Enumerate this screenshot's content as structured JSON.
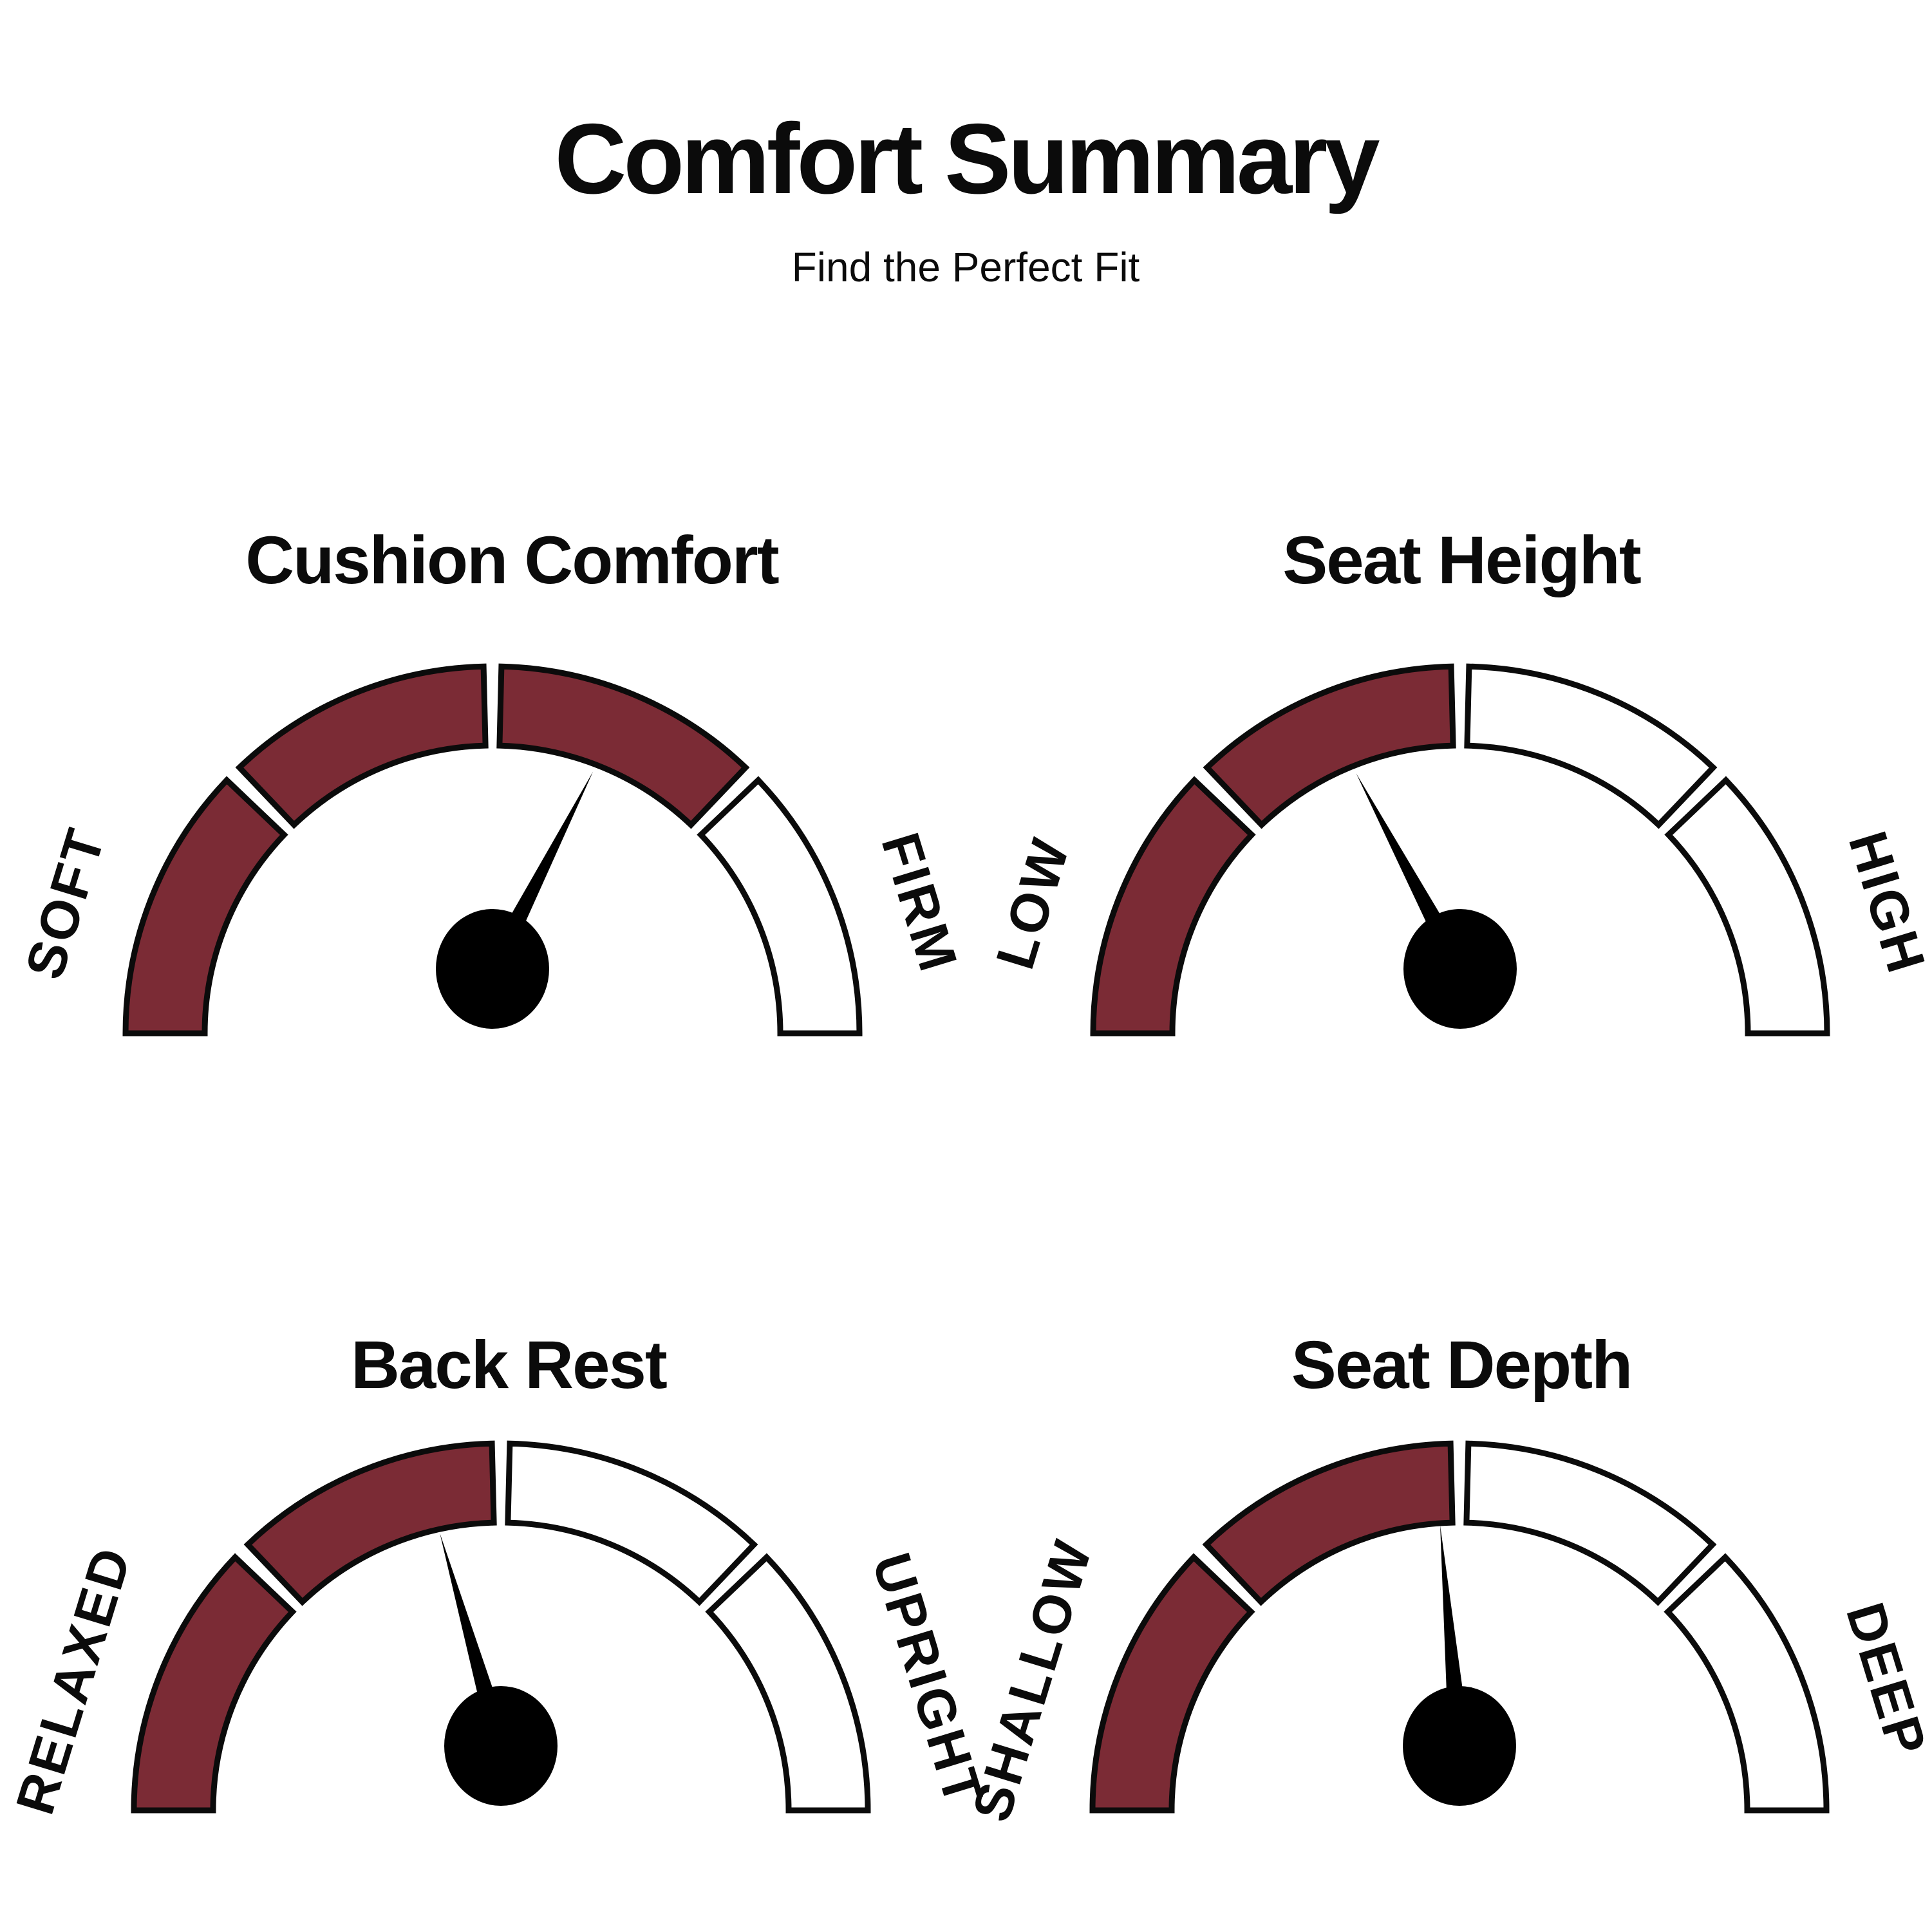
{
  "header": {
    "title": "Comfort Summary",
    "subtitle": "Find the Perfect Fit"
  },
  "colors": {
    "filled": "#7B2B35",
    "unfilled": "#FFFFFF",
    "outline": "#0B0B0B",
    "needle": "#000000",
    "text": "#0B0B0B",
    "background": "#FFFFFF"
  },
  "chart_data": [
    {
      "type": "gauge",
      "title": "Cushion Comfort",
      "left_label": "SOFT",
      "right_label": "FIRM",
      "segments_total": 4,
      "segments_filled": 3,
      "segments": [
        "filled",
        "filled",
        "filled",
        "unfilled"
      ],
      "needle_angle_from_vertical_deg": 27,
      "reading_fraction": 0.65
    },
    {
      "type": "gauge",
      "title": "Seat Height",
      "left_label": "LOW",
      "right_label": "HIGH",
      "segments_total": 4,
      "segments_filled": 2,
      "segments": [
        "filled",
        "filled",
        "unfilled",
        "unfilled"
      ],
      "needle_angle_from_vertical_deg": -28,
      "reading_fraction": 0.34
    },
    {
      "type": "gauge",
      "title": "Back Rest",
      "left_label": "RELAXED",
      "right_label": "UPRIGHT",
      "segments_total": 4,
      "segments_filled": 2,
      "segments": [
        "filled",
        "filled",
        "unfilled",
        "unfilled"
      ],
      "needle_angle_from_vertical_deg": -16,
      "reading_fraction": 0.41
    },
    {
      "type": "gauge",
      "title": "Seat Depth",
      "left_label": "SHALLOW",
      "right_label": "DEEP",
      "segments_total": 4,
      "segments_filled": 2,
      "segments": [
        "filled",
        "filled",
        "unfilled",
        "unfilled"
      ],
      "needle_angle_from_vertical_deg": -5,
      "reading_fraction": 0.47
    }
  ]
}
